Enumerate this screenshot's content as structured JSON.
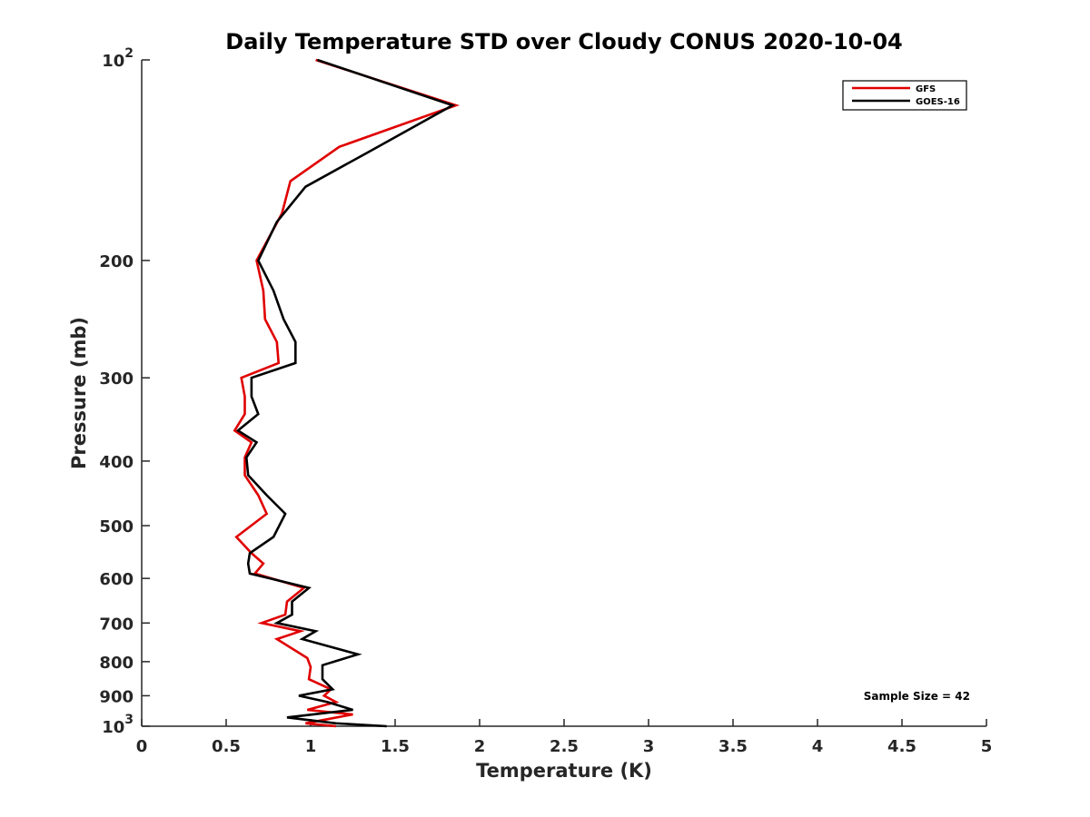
{
  "chart_data": {
    "type": "line",
    "title": "Daily Temperature STD over Cloudy CONUS 2020-10-04",
    "xlabel": "Temperature (K)",
    "ylabel": "Pressure (mb)",
    "xlim": [
      0,
      5
    ],
    "ylim": [
      100,
      1000
    ],
    "y_scale": "log",
    "y_reversed": true,
    "grid": false,
    "legend_position": "top-right",
    "x_ticks": [
      0,
      0.5,
      1,
      1.5,
      2,
      2.5,
      3,
      3.5,
      4,
      4.5,
      5
    ],
    "x_tick_labels": [
      "0",
      "0.5",
      "1",
      "1.5",
      "2",
      "2.5",
      "3",
      "3.5",
      "4",
      "4.5",
      "5"
    ],
    "y_ticks": [
      {
        "value": 100,
        "base": "10",
        "exp": "2"
      },
      {
        "value": 200,
        "label": "200"
      },
      {
        "value": 300,
        "label": "300"
      },
      {
        "value": 400,
        "label": "400"
      },
      {
        "value": 500,
        "label": "500"
      },
      {
        "value": 600,
        "label": "600"
      },
      {
        "value": 700,
        "label": "700"
      },
      {
        "value": 800,
        "label": "800"
      },
      {
        "value": 900,
        "label": "900"
      },
      {
        "value": 1000,
        "base": "10",
        "exp": "3"
      }
    ],
    "annotation": "Sample Size = 42",
    "series": [
      {
        "name": "GFS",
        "color": "#e00000",
        "x": [
          1.03,
          1.86,
          1.17,
          0.88,
          0.83,
          0.68,
          0.72,
          0.73,
          0.8,
          0.81,
          0.59,
          0.61,
          0.61,
          0.55,
          0.65,
          0.61,
          0.61,
          0.69,
          0.74,
          0.56,
          0.65,
          0.72,
          0.67,
          0.96,
          0.86,
          0.85,
          0.71,
          0.94,
          0.8,
          0.98,
          1.0,
          0.99,
          1.12,
          1.08,
          1.15,
          0.98,
          1.25,
          0.97,
          1.15
        ],
        "y": [
          100,
          117,
          135,
          152,
          170,
          200,
          222,
          245,
          265,
          285,
          300,
          320,
          340,
          360,
          375,
          395,
          420,
          450,
          480,
          520,
          550,
          570,
          590,
          620,
          650,
          680,
          700,
          720,
          740,
          790,
          815,
          850,
          880,
          900,
          920,
          945,
          960,
          990,
          1000
        ]
      },
      {
        "name": "GOES-16",
        "color": "#000000",
        "x": [
          1.04,
          1.84,
          1.33,
          0.97,
          0.8,
          0.69,
          0.78,
          0.84,
          0.91,
          0.91,
          0.65,
          0.65,
          0.69,
          0.57,
          0.68,
          0.62,
          0.63,
          0.74,
          0.85,
          0.78,
          0.64,
          0.63,
          0.64,
          0.99,
          0.89,
          0.89,
          0.8,
          1.03,
          0.95,
          1.28,
          1.07,
          1.07,
          1.13,
          0.93,
          1.1,
          1.25,
          0.86,
          1.15,
          1.45
        ],
        "y": [
          100,
          117,
          138,
          155,
          175,
          200,
          222,
          245,
          265,
          285,
          300,
          320,
          340,
          360,
          375,
          395,
          420,
          450,
          480,
          520,
          550,
          570,
          590,
          620,
          650,
          680,
          700,
          720,
          740,
          780,
          810,
          850,
          880,
          900,
          920,
          945,
          970,
          990,
          1000
        ]
      }
    ]
  }
}
